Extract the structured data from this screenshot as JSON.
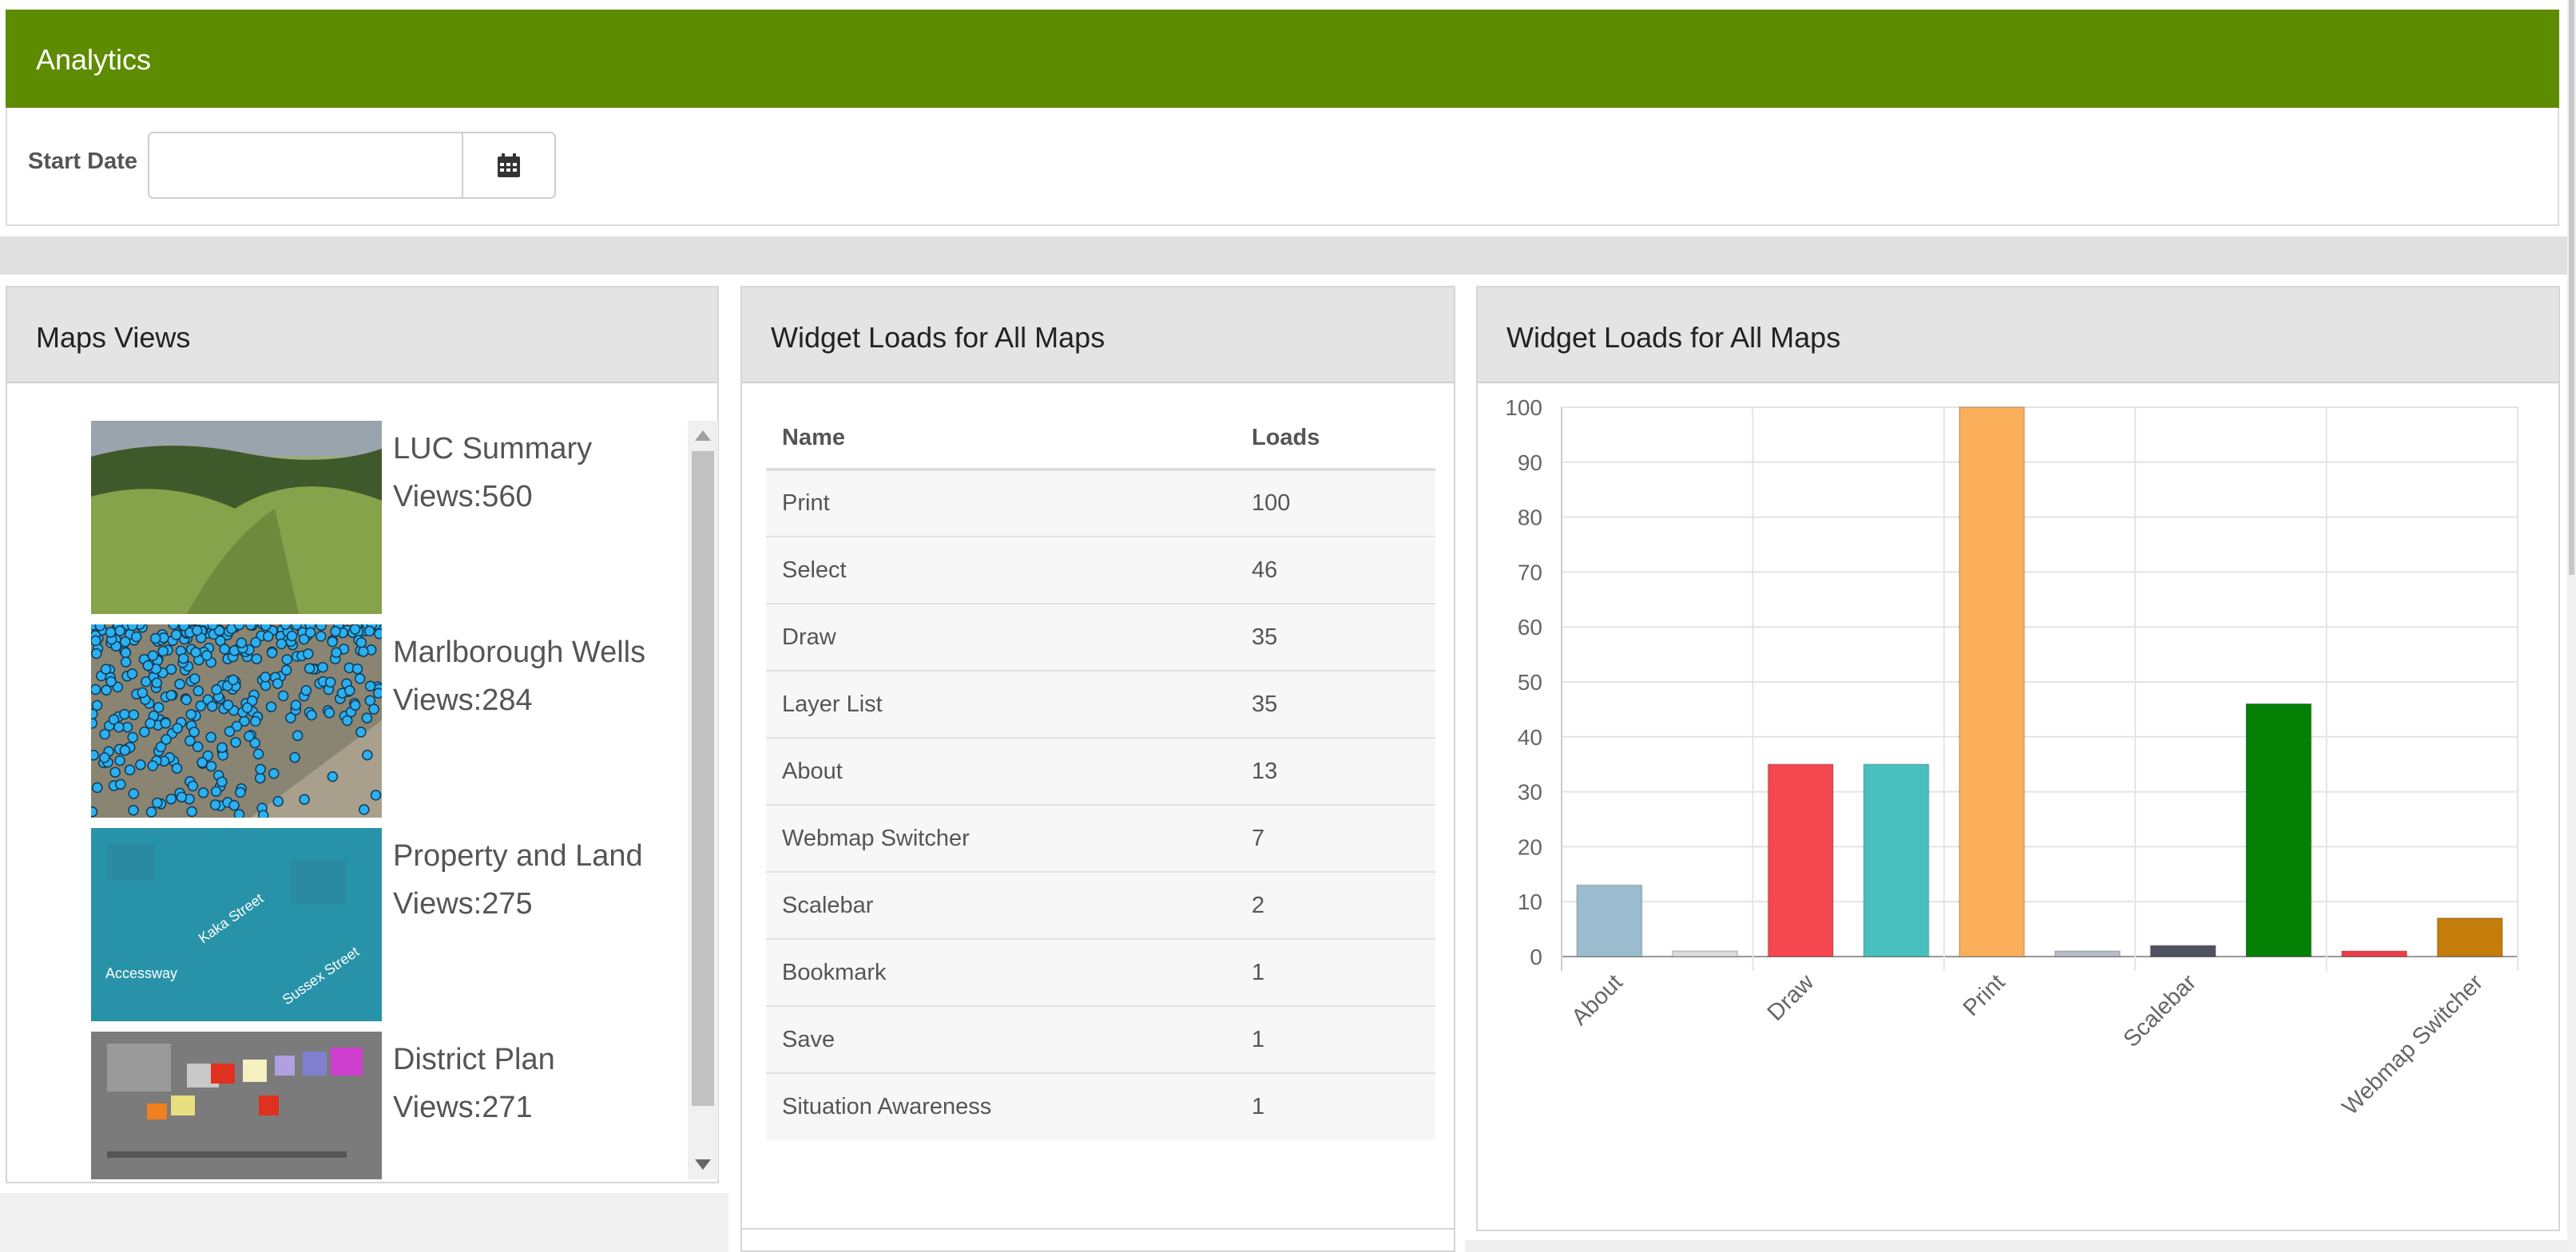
{
  "header": {
    "title": "Analytics"
  },
  "filter": {
    "start_label": "Start Date",
    "start_value": "",
    "calendar_icon": "calendar-icon"
  },
  "maps_panel": {
    "title": "Maps Views",
    "items": [
      {
        "name": "LUC Summary",
        "views": "Views:560"
      },
      {
        "name": "Marlborough Wells",
        "views": "Views:284"
      },
      {
        "name": "Property and Land",
        "views": "Views:275"
      },
      {
        "name": "District Plan",
        "views": "Views:271"
      }
    ],
    "street_labels": [
      "Kaka Street",
      "Accessway",
      "Sussex Street"
    ]
  },
  "table_panel": {
    "title": "Widget Loads for All Maps",
    "columns": [
      "Name",
      "Loads"
    ],
    "rows": [
      [
        "Print",
        "100"
      ],
      [
        "Select",
        "46"
      ],
      [
        "Draw",
        "35"
      ],
      [
        "Layer List",
        "35"
      ],
      [
        "About",
        "13"
      ],
      [
        "Webmap Switcher",
        "7"
      ],
      [
        "Scalebar",
        "2"
      ],
      [
        "Bookmark",
        "1"
      ],
      [
        "Save",
        "1"
      ],
      [
        "Situation Awareness",
        "1"
      ]
    ]
  },
  "chart_panel": {
    "title": "Widget Loads for All Maps"
  },
  "chart_data": {
    "type": "bar",
    "title": "",
    "xlabel": "",
    "ylabel": "",
    "ylim": [
      0,
      100
    ],
    "yticks": [
      0,
      10,
      20,
      30,
      40,
      50,
      60,
      70,
      80,
      90,
      100
    ],
    "grid": true,
    "categories": [
      "About",
      "Bookmark",
      "Draw",
      "Layer List",
      "Print",
      "Save",
      "Scalebar",
      "Select",
      "Situation Awareness",
      "Webmap Switcher"
    ],
    "shown_tick_labels": [
      "About",
      "Draw",
      "Print",
      "Scalebar",
      "Webmap Switcher"
    ],
    "values": [
      13,
      1,
      35,
      35,
      100,
      1,
      2,
      46,
      1,
      7
    ],
    "colors": [
      "#9bbbcf",
      "#dcdcdc",
      "#f5474f",
      "#48c0be",
      "#fbaf5a",
      "#b8bcc8",
      "#4f5260",
      "#048004",
      "#ee3b4a",
      "#c47c0b"
    ]
  }
}
